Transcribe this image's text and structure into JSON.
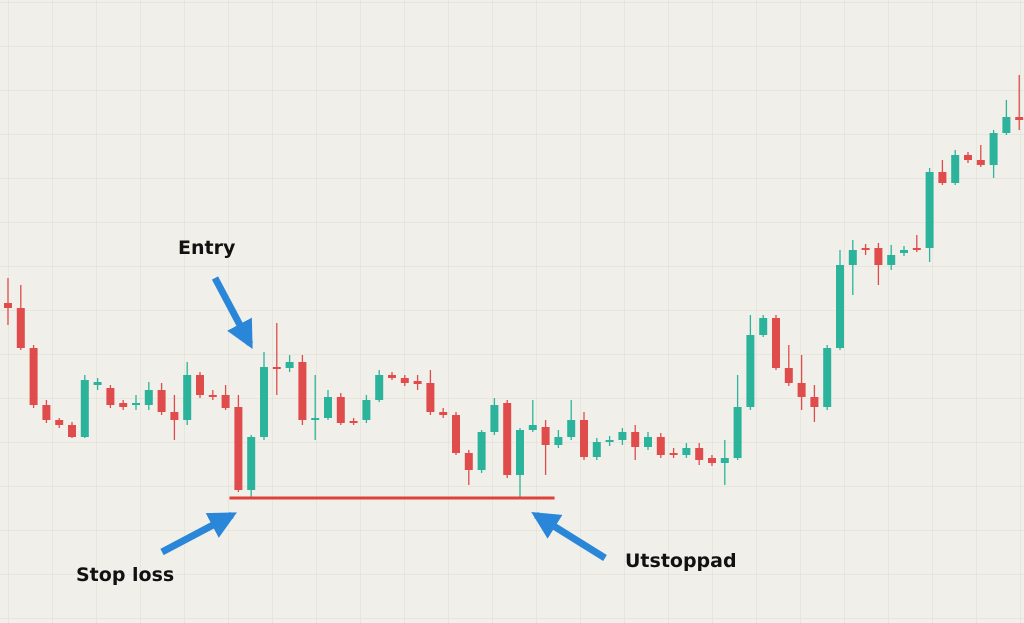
{
  "chart_data": {
    "type": "candlestick",
    "up_color": "#2bb39b",
    "down_color": "#e04b4b",
    "ylim": [
      0,
      623
    ],
    "open": [
      320,
      315,
      275,
      218,
      203,
      198,
      186,
      238,
      235,
      220,
      218,
      218,
      233,
      211,
      203,
      248,
      228,
      228,
      216,
      133,
      186,
      256,
      255,
      261,
      203,
      205,
      226,
      202,
      203,
      223,
      248,
      245,
      242,
      240,
      211,
      208,
      170,
      153,
      191,
      220,
      148,
      193,
      196,
      178,
      186,
      203,
      166,
      181,
      183,
      191,
      176,
      186,
      170,
      168,
      175,
      165,
      160,
      165,
      216,
      288,
      305,
      255,
      240,
      226,
      216,
      275,
      358,
      375,
      375,
      358,
      370,
      375,
      375,
      451,
      440,
      468,
      463,
      458,
      490,
      506
    ],
    "high": [
      345,
      338,
      278,
      223,
      205,
      201,
      248,
      245,
      238,
      223,
      228,
      241,
      240,
      228,
      261,
      251,
      233,
      238,
      228,
      188,
      271,
      300,
      268,
      268,
      248,
      233,
      230,
      205,
      228,
      253,
      251,
      248,
      248,
      253,
      215,
      211,
      173,
      193,
      225,
      223,
      195,
      223,
      203,
      193,
      223,
      211,
      185,
      187,
      195,
      198,
      191,
      190,
      175,
      180,
      180,
      168,
      183,
      248,
      308,
      308,
      308,
      278,
      268,
      238,
      278,
      373,
      383,
      379,
      380,
      378,
      377,
      388,
      455,
      463,
      473,
      471,
      478,
      493,
      523,
      548
    ],
    "low": [
      298,
      273,
      215,
      200,
      195,
      185,
      185,
      233,
      215,
      213,
      213,
      213,
      208,
      183,
      198,
      225,
      223,
      213,
      131,
      126,
      183,
      228,
      251,
      198,
      183,
      203,
      198,
      198,
      200,
      221,
      243,
      237,
      233,
      208,
      205,
      168,
      138,
      150,
      188,
      145,
      126,
      191,
      148,
      175,
      183,
      163,
      163,
      177,
      178,
      163,
      173,
      165,
      165,
      165,
      158,
      157,
      138,
      163,
      213,
      286,
      253,
      237,
      213,
      201,
      213,
      273,
      328,
      368,
      338,
      353,
      367,
      371,
      361,
      438,
      438,
      460,
      456,
      445,
      488,
      493
    ],
    "close": [
      315,
      275,
      218,
      203,
      198,
      186,
      243,
      241,
      218,
      216,
      220,
      233,
      211,
      203,
      248,
      228,
      226,
      215,
      133,
      186,
      256,
      254,
      261,
      203,
      205,
      226,
      200,
      200,
      223,
      248,
      245,
      240,
      239,
      211,
      208,
      170,
      153,
      191,
      218,
      148,
      193,
      198,
      178,
      186,
      203,
      166,
      181,
      183,
      191,
      176,
      186,
      168,
      168,
      175,
      163,
      160,
      165,
      216,
      288,
      305,
      255,
      240,
      226,
      216,
      275,
      358,
      373,
      373,
      358,
      368,
      373,
      373,
      451,
      440,
      468,
      463,
      458,
      490,
      506,
      503
    ],
    "stop_level": {
      "value": 125,
      "color": "#e0413a"
    },
    "annotations": [
      "Entry",
      "Stop loss",
      "Utstoppad"
    ]
  }
}
